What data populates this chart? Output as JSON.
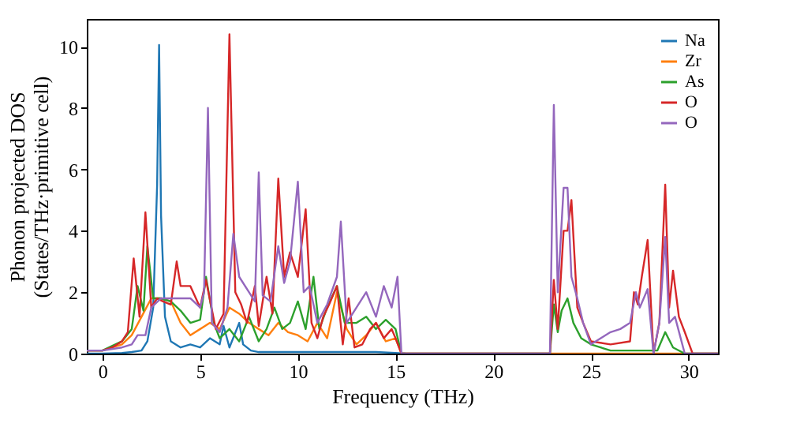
{
  "chart_data": {
    "type": "line",
    "xlabel": "Frequency (THz)",
    "ylabel": "Phonon projected DOS\n(States/THz·primitive cell)",
    "xlim": [
      -0.8,
      31.5
    ],
    "ylim": [
      0,
      10.9
    ],
    "xticks": [
      0,
      5,
      10,
      15,
      20,
      25,
      30
    ],
    "yticks": [
      0,
      2,
      4,
      6,
      8,
      10
    ],
    "legend": "top right",
    "grid": false,
    "series": [
      {
        "name": "Na",
        "color": "#1f77b4",
        "x": [
          -0.8,
          0,
          1,
          1.5,
          2,
          2.3,
          2.6,
          2.8,
          2.9,
          3.0,
          3.2,
          3.5,
          4,
          4.5,
          5,
          5.5,
          6,
          6.2,
          6.5,
          7,
          7.2,
          7.6,
          8,
          9,
          10,
          11,
          12,
          13,
          14,
          15,
          15.5
        ],
        "values": [
          0,
          0,
          0.02,
          0.05,
          0.1,
          0.4,
          1.5,
          5.5,
          10.05,
          4.5,
          1.2,
          0.4,
          0.2,
          0.3,
          0.2,
          0.5,
          0.3,
          0.9,
          0.2,
          1.0,
          0.3,
          0.1,
          0.05,
          0.05,
          0.05,
          0.05,
          0.05,
          0.05,
          0.05,
          0.02,
          0
        ]
      },
      {
        "name": "Zr",
        "color": "#ff7f0e",
        "x": [
          -0.8,
          0,
          1,
          1.5,
          2,
          2.5,
          3,
          3.5,
          4,
          4.5,
          5,
          5.5,
          6,
          6.5,
          7,
          7.5,
          8,
          8.5,
          9,
          9.5,
          10,
          10.5,
          11,
          11.5,
          12,
          12.5,
          13,
          13.5,
          14,
          14.5,
          15,
          15.3,
          23,
          26,
          29,
          31.5
        ],
        "values": [
          0.1,
          0.1,
          0.3,
          0.6,
          1.2,
          1.8,
          1.8,
          1.7,
          1.0,
          0.6,
          0.8,
          1.0,
          0.8,
          1.5,
          1.3,
          1.0,
          0.8,
          0.6,
          1.0,
          0.7,
          0.6,
          0.4,
          1.0,
          0.5,
          2.0,
          0.8,
          0.3,
          0.6,
          1.0,
          0.4,
          0.5,
          0,
          0,
          0,
          0,
          0
        ]
      },
      {
        "name": "As",
        "color": "#2ca02c",
        "x": [
          -0.8,
          0,
          1,
          1.5,
          1.8,
          2.1,
          2.3,
          2.6,
          3,
          3.5,
          4,
          4.5,
          5,
          5.3,
          5.7,
          6,
          6.5,
          7,
          7.5,
          8,
          8.4,
          8.8,
          9.2,
          9.6,
          10,
          10.4,
          10.8,
          11.1,
          11.5,
          12,
          12.4,
          13,
          13.5,
          14,
          14.5,
          15,
          15.3,
          22.9,
          23.1,
          23.3,
          23.5,
          23.8,
          24.1,
          24.5,
          25,
          26,
          27,
          28.4,
          28.8,
          29.2,
          29.8,
          31.5
        ],
        "values": [
          0.1,
          0.1,
          0.4,
          0.8,
          2.2,
          1.4,
          3.5,
          1.8,
          1.8,
          1.7,
          1.4,
          1.0,
          1.1,
          2.5,
          1.0,
          0.5,
          0.8,
          0.4,
          1.2,
          0.4,
          0.8,
          1.5,
          0.8,
          1.0,
          1.7,
          0.8,
          2.5,
          0.8,
          1.5,
          2.2,
          1.0,
          1.0,
          1.2,
          0.8,
          1.1,
          0.8,
          0,
          0,
          1.6,
          0.7,
          1.4,
          1.8,
          1.0,
          0.5,
          0.3,
          0.1,
          0.1,
          0.1,
          0.7,
          0.2,
          0,
          0
        ]
      },
      {
        "name": "O",
        "color": "#d62728",
        "x": [
          -0.8,
          0,
          0.5,
          1,
          1.3,
          1.6,
          1.9,
          2.2,
          2.5,
          2.8,
          3.1,
          3.5,
          3.8,
          4.0,
          4.5,
          5,
          5.3,
          5.8,
          6.2,
          6.5,
          6.8,
          7.1,
          7.4,
          7.8,
          8.0,
          8.4,
          8.7,
          9.0,
          9.3,
          9.6,
          10.0,
          10.4,
          10.7,
          11.0,
          11.3,
          11.6,
          12.0,
          12.3,
          12.6,
          12.9,
          13.3,
          13.7,
          14.0,
          14.4,
          14.8,
          15.0,
          15.3,
          22.9,
          23.1,
          23.3,
          23.6,
          23.8,
          24.0,
          24.3,
          24.6,
          25.0,
          26.0,
          27.0,
          27.2,
          27.4,
          27.6,
          27.9,
          28.2,
          28.5,
          28.8,
          29.0,
          29.2,
          29.5,
          29.8,
          30.2,
          31.5
        ],
        "values": [
          0.1,
          0.1,
          0.2,
          0.4,
          0.7,
          3.1,
          1.2,
          4.6,
          1.5,
          1.8,
          1.7,
          1.6,
          3.0,
          2.2,
          2.2,
          1.5,
          2.4,
          0.8,
          1.3,
          10.4,
          2.0,
          1.6,
          1.0,
          2.2,
          0.9,
          2.5,
          1.3,
          5.7,
          2.5,
          3.3,
          2.5,
          4.7,
          1.0,
          0.5,
          1.2,
          1.6,
          2.2,
          0.3,
          1.8,
          0.2,
          0.3,
          0.8,
          1.0,
          0.5,
          0.8,
          0.5,
          0,
          0,
          2.4,
          0.8,
          4.0,
          4.0,
          5.0,
          1.5,
          1.0,
          0.4,
          0.3,
          0.4,
          2.0,
          1.6,
          2.5,
          3.7,
          0,
          1.0,
          5.5,
          1.5,
          2.7,
          1.2,
          0.7,
          0,
          0
        ]
      },
      {
        "name": "O",
        "color": "#9467bd",
        "x": [
          -0.8,
          0,
          1,
          1.5,
          1.8,
          2.2,
          2.5,
          3,
          3.5,
          4,
          4.5,
          5,
          5.2,
          5.4,
          5.6,
          6,
          6.4,
          6.7,
          7.0,
          7.5,
          7.8,
          8.0,
          8.2,
          8.6,
          9.0,
          9.3,
          9.6,
          10.0,
          10.3,
          10.6,
          11.0,
          11.5,
          12.0,
          12.2,
          12.5,
          13.0,
          13.5,
          14.0,
          14.4,
          14.8,
          15.1,
          15.3,
          22.9,
          23.1,
          23.3,
          23.6,
          23.8,
          24.0,
          24.3,
          24.6,
          25.0,
          25.5,
          26.0,
          26.5,
          27.0,
          27.3,
          27.5,
          27.9,
          28.2,
          28.5,
          28.8,
          29.0,
          29.3,
          29.8,
          31.5
        ],
        "values": [
          0.1,
          0.1,
          0.2,
          0.3,
          0.6,
          0.6,
          1.5,
          1.8,
          1.8,
          1.8,
          1.8,
          1.5,
          2.0,
          8.0,
          1.0,
          0.7,
          1.5,
          3.9,
          2.5,
          2.0,
          1.7,
          5.9,
          1.9,
          1.7,
          3.5,
          2.3,
          3.0,
          5.6,
          2.0,
          2.2,
          1.0,
          1.6,
          2.5,
          4.3,
          1.0,
          1.5,
          2.0,
          1.2,
          2.2,
          1.5,
          2.5,
          0,
          0,
          8.1,
          2.0,
          5.4,
          5.4,
          2.5,
          1.8,
          1.0,
          0.3,
          0.5,
          0.7,
          0.8,
          1.0,
          2.0,
          1.5,
          2.1,
          0,
          1.0,
          3.8,
          1.0,
          1.2,
          0,
          0
        ]
      }
    ]
  }
}
